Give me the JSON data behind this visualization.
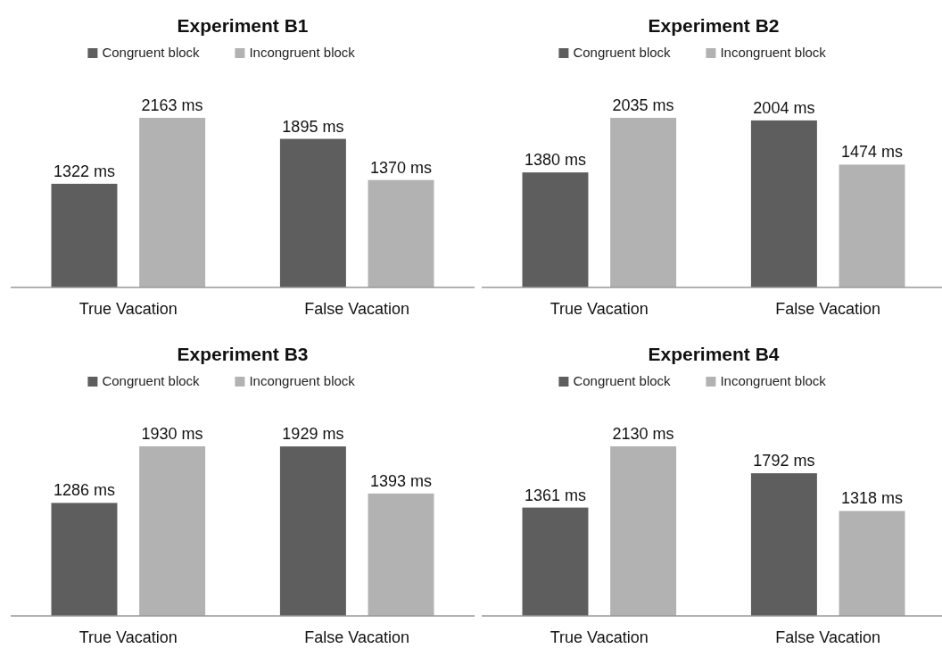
{
  "chart_data": [
    {
      "type": "bar",
      "title": "Experiment B1",
      "categories": [
        "True Vacation",
        "False Vacation"
      ],
      "legend": "top",
      "series": [
        {
          "name": "Congruent block",
          "color": "#5e5e5e",
          "values": [
            1322,
            1895
          ],
          "value_labels": [
            "1322 ms",
            "1895 ms"
          ]
        },
        {
          "name": "Incongruent block",
          "color": "#b2b2b2",
          "values": [
            2163,
            1370
          ],
          "value_labels": [
            "2163 ms",
            "1370 ms"
          ]
        }
      ]
    },
    {
      "type": "bar",
      "title": "Experiment B2",
      "categories": [
        "True Vacation",
        "False Vacation"
      ],
      "legend": "top",
      "series": [
        {
          "name": "Congruent block",
          "color": "#5e5e5e",
          "values": [
            1380,
            2004
          ],
          "value_labels": [
            "1380 ms",
            "2004 ms"
          ]
        },
        {
          "name": "Incongruent block",
          "color": "#b2b2b2",
          "values": [
            2035,
            1474
          ],
          "value_labels": [
            "2035 ms",
            "1474 ms"
          ]
        }
      ]
    },
    {
      "type": "bar",
      "title": "Experiment B3",
      "categories": [
        "True Vacation",
        "False Vacation"
      ],
      "legend": "top",
      "series": [
        {
          "name": "Congruent block",
          "color": "#5e5e5e",
          "values": [
            1286,
            1929
          ],
          "value_labels": [
            "1286 ms",
            "1929 ms"
          ]
        },
        {
          "name": "Incongruent block",
          "color": "#b2b2b2",
          "values": [
            1930,
            1393
          ],
          "value_labels": [
            "1930 ms",
            "1393 ms"
          ]
        }
      ]
    },
    {
      "type": "bar",
      "title": "Experiment B4",
      "categories": [
        "True Vacation",
        "False Vacation"
      ],
      "legend": "top",
      "series": [
        {
          "name": "Congruent block",
          "color": "#5e5e5e",
          "values": [
            1361,
            1792
          ],
          "value_labels": [
            "1361 ms",
            "1792 ms"
          ]
        },
        {
          "name": "Incongruent block",
          "color": "#b2b2b2",
          "values": [
            2130,
            1318
          ],
          "value_labels": [
            "2130 ms",
            "1318 ms"
          ]
        }
      ]
    }
  ]
}
